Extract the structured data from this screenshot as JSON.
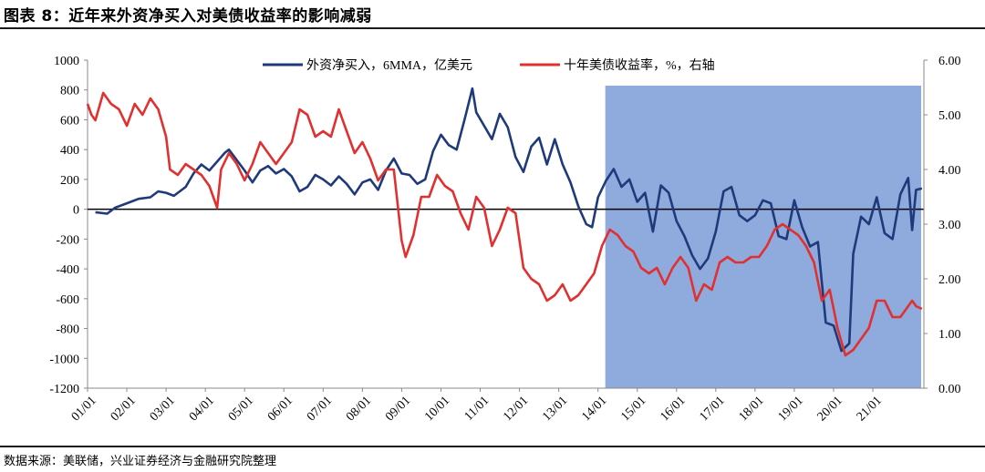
{
  "title": "图表 8：近年来外资净买入对美债收益率的影响减弱",
  "source": "数据来源：美联储，兴业证券经济与金融研究院整理",
  "chart_data": {
    "type": "line",
    "left_axis": {
      "min": -1200,
      "max": 1000,
      "step": 200,
      "ticks": [
        "1000",
        "800",
        "600",
        "400",
        "200",
        "0",
        "-200",
        "-400",
        "-600",
        "-800",
        "-1000",
        "-1200"
      ]
    },
    "right_axis": {
      "min": 0,
      "max": 6,
      "step": 1,
      "ticks": [
        "6.00",
        "5.00",
        "4.00",
        "3.00",
        "2.00",
        "1.00",
        "0.00"
      ]
    },
    "x_ticks": [
      "01/01",
      "02/01",
      "03/01",
      "04/01",
      "05/01",
      "06/01",
      "07/01",
      "08/01",
      "09/01",
      "10/01",
      "11/01",
      "12/01",
      "13/01",
      "14/01",
      "15/01",
      "16/01",
      "17/01",
      "18/01",
      "19/01",
      "20/01",
      "21/01"
    ],
    "shaded_range": {
      "from": "14/01",
      "to": "21/12",
      "color": "#8faadc"
    },
    "grid": false,
    "legend_position": "top",
    "series": [
      {
        "name": "外资净买入，6MMA，亿美元",
        "axis": "left",
        "color": "#1f3a7a",
        "points": [
          [
            0.2,
            -20
          ],
          [
            0.5,
            -30
          ],
          [
            0.7,
            10
          ],
          [
            1.0,
            40
          ],
          [
            1.3,
            70
          ],
          [
            1.6,
            80
          ],
          [
            1.8,
            120
          ],
          [
            2.0,
            110
          ],
          [
            2.2,
            90
          ],
          [
            2.5,
            150
          ],
          [
            2.7,
            240
          ],
          [
            2.9,
            300
          ],
          [
            3.1,
            260
          ],
          [
            3.3,
            320
          ],
          [
            3.5,
            380
          ],
          [
            3.6,
            400
          ],
          [
            3.8,
            330
          ],
          [
            4.0,
            260
          ],
          [
            4.2,
            180
          ],
          [
            4.4,
            260
          ],
          [
            4.6,
            290
          ],
          [
            4.8,
            240
          ],
          [
            5.0,
            270
          ],
          [
            5.2,
            220
          ],
          [
            5.4,
            120
          ],
          [
            5.6,
            150
          ],
          [
            5.8,
            230
          ],
          [
            6.0,
            200
          ],
          [
            6.2,
            160
          ],
          [
            6.4,
            220
          ],
          [
            6.6,
            170
          ],
          [
            6.8,
            100
          ],
          [
            7.0,
            180
          ],
          [
            7.2,
            200
          ],
          [
            7.4,
            130
          ],
          [
            7.6,
            260
          ],
          [
            7.8,
            340
          ],
          [
            8.0,
            240
          ],
          [
            8.2,
            230
          ],
          [
            8.4,
            170
          ],
          [
            8.6,
            200
          ],
          [
            8.8,
            390
          ],
          [
            9.0,
            500
          ],
          [
            9.2,
            430
          ],
          [
            9.4,
            400
          ],
          [
            9.6,
            600
          ],
          [
            9.8,
            810
          ],
          [
            9.9,
            650
          ],
          [
            10.1,
            560
          ],
          [
            10.3,
            470
          ],
          [
            10.5,
            640
          ],
          [
            10.7,
            550
          ],
          [
            10.9,
            350
          ],
          [
            11.1,
            250
          ],
          [
            11.3,
            420
          ],
          [
            11.5,
            480
          ],
          [
            11.7,
            300
          ],
          [
            11.9,
            470
          ],
          [
            12.1,
            300
          ],
          [
            12.3,
            180
          ],
          [
            12.5,
            20
          ],
          [
            12.7,
            -100
          ],
          [
            12.85,
            -120
          ],
          [
            13.0,
            80
          ],
          [
            13.2,
            190
          ],
          [
            13.4,
            270
          ],
          [
            13.6,
            150
          ],
          [
            13.8,
            200
          ],
          [
            14.0,
            50
          ],
          [
            14.2,
            110
          ],
          [
            14.4,
            -150
          ],
          [
            14.6,
            160
          ],
          [
            14.8,
            110
          ],
          [
            15.0,
            -80
          ],
          [
            15.2,
            -180
          ],
          [
            15.4,
            -310
          ],
          [
            15.6,
            -400
          ],
          [
            15.8,
            -330
          ],
          [
            16.0,
            -150
          ],
          [
            16.2,
            120
          ],
          [
            16.4,
            150
          ],
          [
            16.6,
            -40
          ],
          [
            16.8,
            -80
          ],
          [
            17.0,
            -40
          ],
          [
            17.2,
            60
          ],
          [
            17.4,
            40
          ],
          [
            17.6,
            -180
          ],
          [
            17.8,
            -200
          ],
          [
            18.0,
            60
          ],
          [
            18.2,
            -120
          ],
          [
            18.4,
            -250
          ],
          [
            18.6,
            -220
          ],
          [
            18.8,
            -760
          ],
          [
            19.0,
            -780
          ],
          [
            19.2,
            -950
          ],
          [
            19.4,
            -900
          ],
          [
            19.5,
            -300
          ],
          [
            19.7,
            -50
          ],
          [
            19.9,
            -100
          ],
          [
            20.1,
            80
          ],
          [
            20.3,
            -160
          ],
          [
            20.5,
            -200
          ],
          [
            20.7,
            100
          ],
          [
            20.9,
            210
          ],
          [
            21.0,
            -140
          ],
          [
            21.1,
            130
          ],
          [
            21.25,
            140
          ]
        ]
      },
      {
        "name": "十年美债收益率，%，右轴",
        "axis": "right",
        "color": "#e03030",
        "points": [
          [
            0.0,
            5.2
          ],
          [
            0.1,
            5.0
          ],
          [
            0.2,
            4.9
          ],
          [
            0.4,
            5.4
          ],
          [
            0.6,
            5.2
          ],
          [
            0.8,
            5.1
          ],
          [
            1.0,
            4.8
          ],
          [
            1.2,
            5.2
          ],
          [
            1.4,
            5.0
          ],
          [
            1.6,
            5.3
          ],
          [
            1.8,
            5.1
          ],
          [
            2.0,
            4.6
          ],
          [
            2.1,
            4.0
          ],
          [
            2.3,
            3.9
          ],
          [
            2.5,
            4.1
          ],
          [
            2.7,
            4.0
          ],
          [
            2.9,
            3.9
          ],
          [
            3.1,
            3.7
          ],
          [
            3.3,
            3.3
          ],
          [
            3.4,
            4.0
          ],
          [
            3.6,
            4.3
          ],
          [
            3.8,
            4.1
          ],
          [
            4.0,
            3.8
          ],
          [
            4.2,
            4.1
          ],
          [
            4.4,
            4.5
          ],
          [
            4.6,
            4.3
          ],
          [
            4.8,
            4.1
          ],
          [
            5.0,
            4.3
          ],
          [
            5.2,
            4.5
          ],
          [
            5.4,
            5.1
          ],
          [
            5.6,
            5.0
          ],
          [
            5.8,
            4.6
          ],
          [
            6.0,
            4.7
          ],
          [
            6.2,
            4.6
          ],
          [
            6.4,
            5.1
          ],
          [
            6.6,
            4.7
          ],
          [
            6.8,
            4.3
          ],
          [
            7.0,
            4.5
          ],
          [
            7.2,
            4.2
          ],
          [
            7.4,
            3.8
          ],
          [
            7.6,
            4.0
          ],
          [
            7.8,
            4.0
          ],
          [
            8.0,
            2.7
          ],
          [
            8.1,
            2.4
          ],
          [
            8.3,
            2.8
          ],
          [
            8.5,
            3.5
          ],
          [
            8.7,
            3.5
          ],
          [
            8.9,
            3.9
          ],
          [
            9.1,
            3.7
          ],
          [
            9.3,
            3.6
          ],
          [
            9.5,
            3.2
          ],
          [
            9.7,
            2.9
          ],
          [
            9.9,
            3.5
          ],
          [
            10.1,
            3.3
          ],
          [
            10.3,
            2.6
          ],
          [
            10.5,
            2.9
          ],
          [
            10.7,
            3.3
          ],
          [
            10.9,
            3.2
          ],
          [
            11.1,
            2.2
          ],
          [
            11.3,
            2.0
          ],
          [
            11.5,
            1.9
          ],
          [
            11.7,
            1.6
          ],
          [
            11.9,
            1.7
          ],
          [
            12.1,
            1.9
          ],
          [
            12.3,
            1.6
          ],
          [
            12.5,
            1.7
          ],
          [
            12.7,
            1.9
          ],
          [
            12.9,
            2.1
          ],
          [
            13.1,
            2.6
          ],
          [
            13.3,
            2.9
          ],
          [
            13.5,
            2.8
          ],
          [
            13.7,
            2.6
          ],
          [
            13.9,
            2.5
          ],
          [
            14.1,
            2.2
          ],
          [
            14.3,
            2.1
          ],
          [
            14.5,
            2.2
          ],
          [
            14.7,
            1.9
          ],
          [
            14.9,
            2.2
          ],
          [
            15.1,
            2.4
          ],
          [
            15.3,
            2.2
          ],
          [
            15.5,
            1.6
          ],
          [
            15.7,
            1.9
          ],
          [
            15.9,
            1.8
          ],
          [
            16.1,
            2.3
          ],
          [
            16.3,
            2.4
          ],
          [
            16.5,
            2.3
          ],
          [
            16.7,
            2.3
          ],
          [
            16.9,
            2.4
          ],
          [
            17.1,
            2.4
          ],
          [
            17.3,
            2.6
          ],
          [
            17.5,
            2.9
          ],
          [
            17.7,
            3.0
          ],
          [
            17.9,
            2.9
          ],
          [
            18.1,
            2.8
          ],
          [
            18.3,
            2.6
          ],
          [
            18.5,
            2.3
          ],
          [
            18.7,
            1.6
          ],
          [
            18.9,
            1.8
          ],
          [
            19.1,
            1.1
          ],
          [
            19.3,
            0.6
          ],
          [
            19.5,
            0.7
          ],
          [
            19.7,
            0.9
          ],
          [
            19.9,
            1.1
          ],
          [
            20.1,
            1.6
          ],
          [
            20.3,
            1.6
          ],
          [
            20.5,
            1.3
          ],
          [
            20.7,
            1.3
          ],
          [
            20.9,
            1.5
          ],
          [
            21.0,
            1.6
          ],
          [
            21.1,
            1.5
          ],
          [
            21.25,
            1.45
          ]
        ]
      }
    ]
  }
}
